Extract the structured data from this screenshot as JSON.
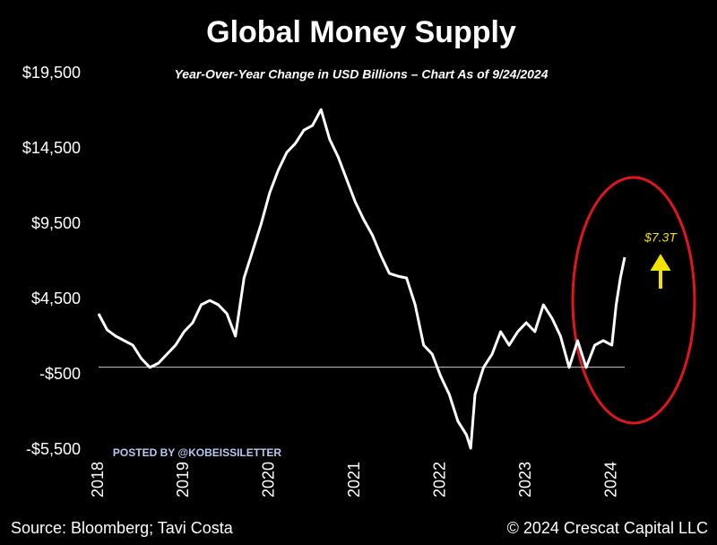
{
  "chart_data": {
    "type": "line",
    "title": "Global Money Supply",
    "subtitle": "Year-Over-Year Change in USD Billions – Chart As of 9/24/2024",
    "annotation": "$7.3T",
    "watermark": "POSTED BY @KOBEISSILETTER",
    "source": "Source: Bloomberg; Tavi Costa",
    "copyright": "© 2024 Crescat Capital LLC",
    "color": "#ffffff",
    "x": [
      2018.0,
      2018.1,
      2018.2,
      2018.3,
      2018.4,
      2018.5,
      2018.6,
      2018.7,
      2018.8,
      2018.9,
      2019.0,
      2019.1,
      2019.2,
      2019.3,
      2019.4,
      2019.5,
      2019.6,
      2019.7,
      2019.8,
      2019.9,
      2020.0,
      2020.1,
      2020.2,
      2020.3,
      2020.4,
      2020.5,
      2020.6,
      2020.7,
      2020.8,
      2020.9,
      2021.0,
      2021.1,
      2021.2,
      2021.3,
      2021.4,
      2021.5,
      2021.6,
      2021.7,
      2021.8,
      2021.9,
      2022.0,
      2022.1,
      2022.2,
      2022.3,
      2022.35,
      2022.4,
      2022.5,
      2022.6,
      2022.7,
      2022.8,
      2022.9,
      2023.0,
      2023.1,
      2023.2,
      2023.3,
      2023.4,
      2023.5,
      2023.6,
      2023.7,
      2023.8,
      2023.9,
      2024.0,
      2024.05,
      2024.1,
      2024.15
    ],
    "values": [
      3550,
      2480,
      2060,
      1760,
      1460,
      570,
      -20,
      270,
      870,
      1460,
      2360,
      2950,
      4140,
      4430,
      4140,
      3550,
      2060,
      5920,
      7700,
      9500,
      11580,
      13070,
      14260,
      14850,
      15740,
      16040,
      17110,
      15150,
      13960,
      12470,
      10980,
      9790,
      8780,
      7410,
      6220,
      6040,
      5920,
      4140,
      1460,
      870,
      -620,
      -1810,
      -3590,
      -4480,
      -5380,
      -1810,
      -20,
      870,
      2360,
      1460,
      2360,
      2950,
      2360,
      4140,
      3250,
      2060,
      -20,
      1760,
      -20,
      1460,
      1760,
      1460,
      4140,
      5920,
      7300
    ],
    "xlim": [
      2018,
      2024.15
    ],
    "xticks": [
      2018,
      2019,
      2020,
      2021,
      2022,
      2023,
      2024
    ],
    "ylim": [
      -5500,
      19500
    ],
    "yticks": [
      {
        "value": -5500,
        "label": "-$5,500"
      },
      {
        "value": -500,
        "label": "-$500"
      },
      {
        "value": 4500,
        "label": "$4,500"
      },
      {
        "value": 9500,
        "label": "$9,500"
      },
      {
        "value": 14500,
        "label": "$14,500"
      },
      {
        "value": 19500,
        "label": "$19,500"
      }
    ]
  }
}
